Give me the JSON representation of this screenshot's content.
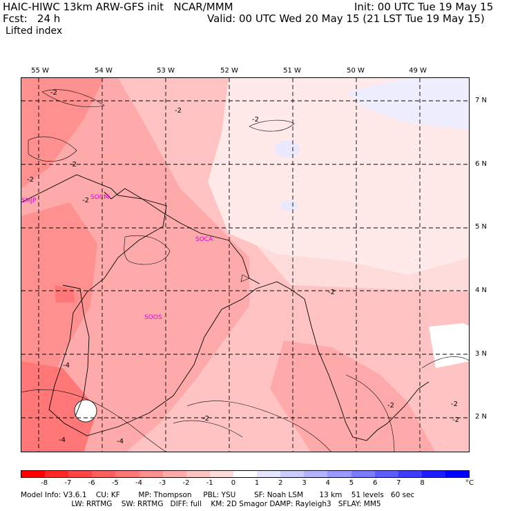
{
  "header": {
    "title": "HAIC-HIWC 13km ARW-GFS init   NCAR/MMM",
    "init": "Init: 00 UTC Tue 19 May 15",
    "fcst": "Fcst:   24 h",
    "valid": "Valid: 00 UTC Wed 20 May 15 (21 LST Tue 19 May 15)",
    "field": "Lifted index"
  },
  "axes": {
    "lon_labels": [
      "55 W",
      "54 W",
      "53 W",
      "52 W",
      "51 W",
      "50 W",
      "49 W"
    ],
    "lat_labels": [
      "7 N",
      "6 N",
      "5 N",
      "4 N",
      "3 N",
      "2 N"
    ]
  },
  "stations": [
    "SMJP",
    "SOCM",
    "SOCA",
    "SOOS"
  ],
  "contour_labels": [
    "-2",
    "-2",
    "-2",
    "-2",
    "-2",
    "-2",
    "-2",
    "-2",
    "-2",
    "-2",
    "-4",
    "-4",
    "-4"
  ],
  "colorbar": {
    "ticks": [
      "-8",
      "-7",
      "-6",
      "-5",
      "-4",
      "-3",
      "-2",
      "-1",
      "0",
      "1",
      "2",
      "3",
      "4",
      "5",
      "6",
      "7",
      "8"
    ],
    "unit": "°C",
    "colors": [
      "#ff0000",
      "#ff2828",
      "#ff4646",
      "#ff5f5f",
      "#ff7777",
      "#ff9090",
      "#ffaaaa",
      "#ffc3c3",
      "#ffdcdc",
      "#ffffff",
      "#e6e6ff",
      "#ccccff",
      "#b3b3ff",
      "#9999ff",
      "#7b7bff",
      "#5c5cff",
      "#3d3dff",
      "#1c1cff",
      "#0000ff"
    ]
  },
  "model_info": {
    "line1": "Model Info: V3.6.1    CU: KF        MP: Thompson     PBL: YSU        SF: Noah LSM       13 km    51 levels   60 sec",
    "line2": "                      LW: RRTMG    SW: RRTMG   DIFF: full    KM: 2D Smagor DAMP: Rayleigh3   SFLAY: MM5"
  }
}
